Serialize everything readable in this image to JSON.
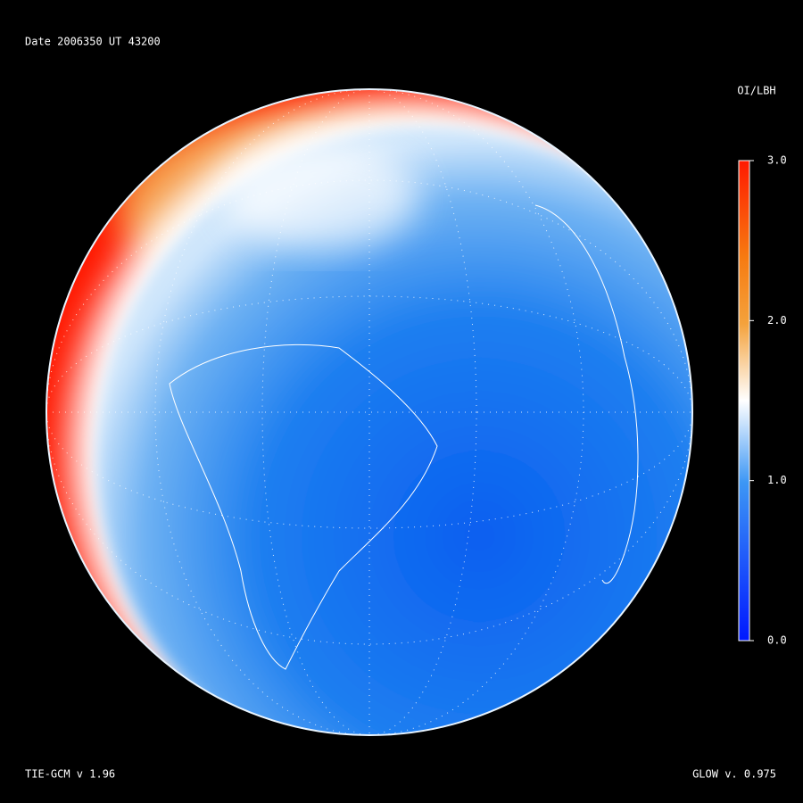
{
  "header": {
    "title": "Date 2006350   UT 43200"
  },
  "colorbar": {
    "title": "OI/LBH",
    "lim": [
      0,
      3
    ],
    "ticks": [
      {
        "value": 0,
        "label": "0.0"
      },
      {
        "value": 1,
        "label": "1.0"
      },
      {
        "value": 2,
        "label": "2.0"
      },
      {
        "value": 3,
        "label": "3.0"
      }
    ]
  },
  "footer": {
    "left": "TIE-GCM v 1.96",
    "right": "GLOW v. 0.975"
  }
}
